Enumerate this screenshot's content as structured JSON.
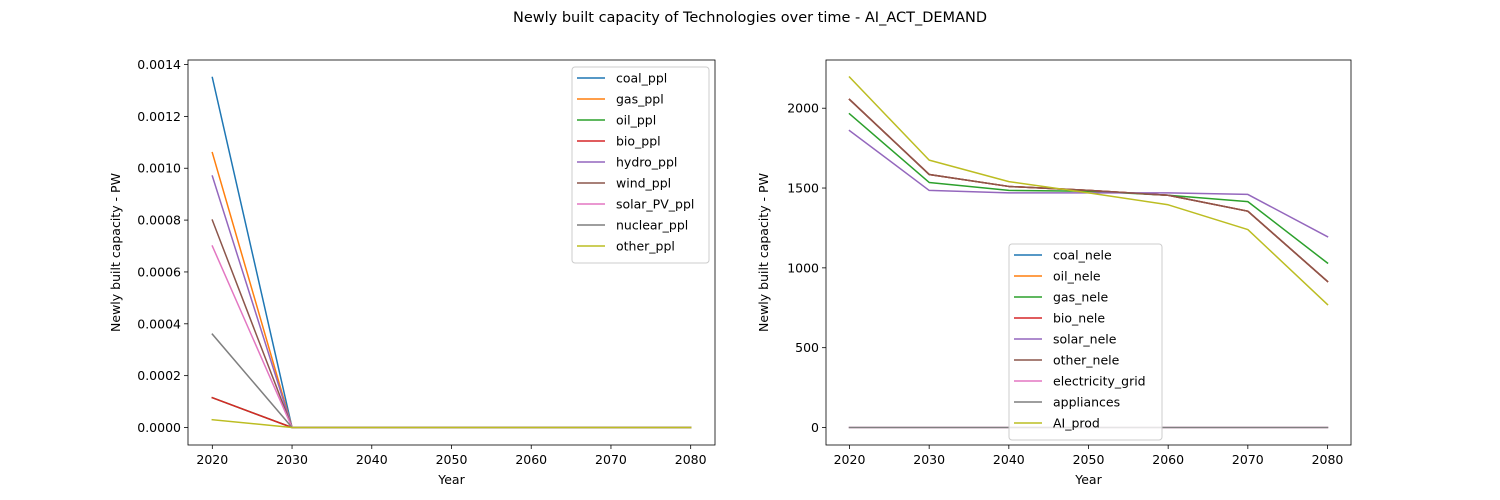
{
  "figure_title": "Newly built capacity of Technologies over time - AI_ACT_DEMAND",
  "chart_data": [
    {
      "type": "line",
      "title": "",
      "xlabel": "Year",
      "ylabel": "Newly built capacity - PW",
      "x": [
        2020,
        2030,
        2040,
        2050,
        2060,
        2070,
        2080
      ],
      "xticks": [
        2020,
        2030,
        2040,
        2050,
        2060,
        2070,
        2080
      ],
      "xtick_labels": [
        "2020",
        "2030",
        "2040",
        "2050",
        "2060",
        "2070",
        "2080"
      ],
      "xlim": [
        2016.95,
        2083.05
      ],
      "yticks": [
        0.0,
        0.0002,
        0.0004,
        0.0006,
        0.0008,
        0.001,
        0.0012,
        0.0014
      ],
      "ytick_labels": [
        "0.0000",
        "0.0002",
        "0.0004",
        "0.0006",
        "0.0008",
        "0.0010",
        "0.0012",
        "0.0014"
      ],
      "ylim": [
        -6.75e-05,
        0.0014175
      ],
      "grid": false,
      "legend_position": "top-right",
      "series": [
        {
          "name": "coal_ppl",
          "color": "#1f77b4",
          "values": [
            0.00135,
            0,
            0,
            0,
            0,
            0,
            0
          ]
        },
        {
          "name": "gas_ppl",
          "color": "#ff7f0e",
          "values": [
            0.00106,
            0,
            0,
            0,
            0,
            0,
            0
          ]
        },
        {
          "name": "oil_ppl",
          "color": "#2ca02c",
          "values": [
            0.000115,
            0,
            0,
            0,
            0,
            0,
            0
          ]
        },
        {
          "name": "bio_ppl",
          "color": "#d62728",
          "values": [
            0.000115,
            0,
            0,
            0,
            0,
            0,
            0
          ]
        },
        {
          "name": "hydro_ppl",
          "color": "#9467bd",
          "values": [
            0.00097,
            0,
            0,
            0,
            0,
            0,
            0
          ]
        },
        {
          "name": "wind_ppl",
          "color": "#8c564b",
          "values": [
            0.0008,
            0,
            0,
            0,
            0,
            0,
            0
          ]
        },
        {
          "name": "solar_PV_ppl",
          "color": "#e377c2",
          "values": [
            0.0007,
            0,
            0,
            0,
            0,
            0,
            0
          ]
        },
        {
          "name": "nuclear_ppl",
          "color": "#7f7f7f",
          "values": [
            0.00036,
            0,
            0,
            0,
            0,
            0,
            0
          ]
        },
        {
          "name": "other_ppl",
          "color": "#bcbd22",
          "values": [
            3e-05,
            0,
            0,
            0,
            0,
            0,
            0
          ]
        }
      ]
    },
    {
      "type": "line",
      "title": "",
      "xlabel": "Year",
      "ylabel": "Newly built capacity - PW",
      "x": [
        2020,
        2030,
        2040,
        2050,
        2060,
        2070,
        2080
      ],
      "xticks": [
        2020,
        2030,
        2040,
        2050,
        2060,
        2070,
        2080
      ],
      "xtick_labels": [
        "2020",
        "2030",
        "2040",
        "2050",
        "2060",
        "2070",
        "2080"
      ],
      "xlim": [
        2017.05,
        2082.95
      ],
      "yticks": [
        0,
        500,
        1000,
        1500,
        2000
      ],
      "ytick_labels": [
        "0",
        "500",
        "1000",
        "1500",
        "2000"
      ],
      "ylim": [
        -109.6,
        2302.0
      ],
      "grid": false,
      "legend_position": "lower-center",
      "series": [
        {
          "name": "coal_nele",
          "color": "#1f77b4",
          "values": [
            2055,
            1585,
            1510,
            1485,
            1455,
            1355,
            915
          ]
        },
        {
          "name": "oil_nele",
          "color": "#ff7f0e",
          "values": [
            2055,
            1585,
            1510,
            1485,
            1455,
            1355,
            915
          ]
        },
        {
          "name": "gas_nele",
          "color": "#2ca02c",
          "values": [
            1965,
            1535,
            1485,
            1480,
            1455,
            1415,
            1030
          ]
        },
        {
          "name": "bio_nele",
          "color": "#d62728",
          "values": [
            2055,
            1585,
            1510,
            1485,
            1455,
            1355,
            915
          ]
        },
        {
          "name": "solar_nele",
          "color": "#9467bd",
          "values": [
            1860,
            1485,
            1470,
            1470,
            1470,
            1460,
            1195
          ]
        },
        {
          "name": "other_nele",
          "color": "#8c564b",
          "values": [
            2055,
            1585,
            1510,
            1485,
            1455,
            1355,
            915
          ]
        },
        {
          "name": "electricity_grid",
          "color": "#e377c2",
          "values": [
            0,
            0,
            0,
            0,
            0,
            0,
            0
          ]
        },
        {
          "name": "appliances",
          "color": "#7f7f7f",
          "values": [
            0,
            0,
            0,
            0,
            0,
            0,
            0
          ]
        },
        {
          "name": "AI_prod",
          "color": "#bcbd22",
          "values": [
            2195,
            1675,
            1540,
            1470,
            1395,
            1240,
            770
          ]
        }
      ]
    }
  ]
}
